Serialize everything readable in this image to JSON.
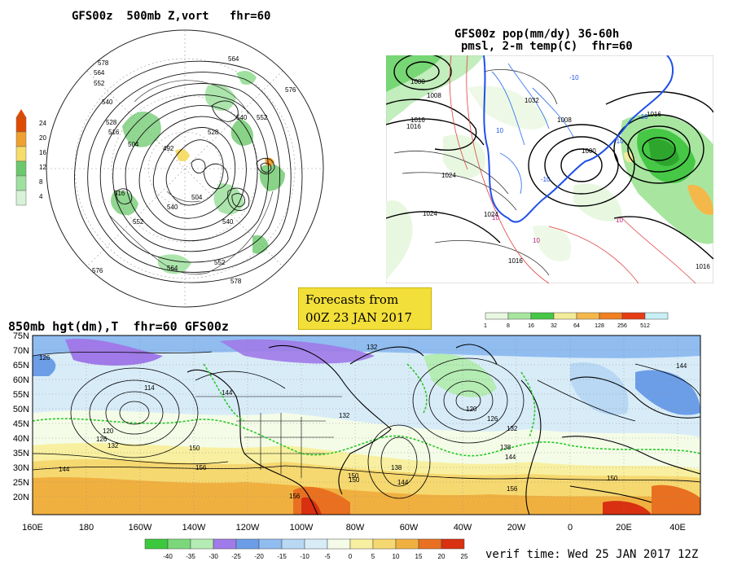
{
  "panel1": {
    "title": "GFS00z  500mb Z,vort   fhr=60",
    "scale_ticks": [
      "24",
      "20",
      "16",
      "12",
      "8",
      "4"
    ],
    "scale_colors": [
      "#e04a00",
      "#f0a030",
      "#f6dc6a",
      "#6cc86c",
      "#9ee09e",
      "#d8f2d8"
    ],
    "contour_labels": [
      "578",
      "564",
      "552",
      "540",
      "528",
      "516",
      "504",
      "492",
      "528",
      "540",
      "552",
      "564",
      "576",
      "516",
      "504",
      "540",
      "552",
      "540",
      "564",
      "576",
      "578",
      "552"
    ]
  },
  "panel2": {
    "title_line1": "GFS00z pop(mm/dy) 36-60h",
    "title_line2": "pmsl, 2-m temp(C)  fhr=60",
    "scale_ticks": [
      "1",
      "8",
      "16",
      "32",
      "64",
      "128",
      "256",
      "512"
    ],
    "scale_colors": [
      "#e8f8e0",
      "#a8e6a0",
      "#46c846",
      "#f2ec9a",
      "#f4b84a",
      "#f08020",
      "#e83c14",
      "#c8f0f4"
    ],
    "contour_labels": [
      "1000",
      "1008",
      "1016",
      "1024",
      "1032",
      "1024",
      "1016",
      "1008",
      "1000",
      "1016",
      "1024",
      "1016",
      "1016"
    ],
    "temp_labels": [
      "10",
      "-10",
      "10",
      "-10",
      "10",
      "-10",
      "10",
      "-10"
    ]
  },
  "forecast_box": {
    "line1": "Forecasts from",
    "line2": "00Z 23 JAN 2017"
  },
  "panel3": {
    "title": "850mb hgt(dm),T  fhr=60 GFS00z",
    "lat_labels": [
      "75N",
      "70N",
      "65N",
      "60N",
      "55N",
      "50N",
      "45N",
      "40N",
      "35N",
      "30N",
      "25N",
      "20N"
    ],
    "lon_labels": [
      "160E",
      "180",
      "160W",
      "140W",
      "120W",
      "100W",
      "80W",
      "60W",
      "40W",
      "20W",
      "0",
      "20E",
      "40E"
    ],
    "height_labels": [
      "126",
      "132",
      "144",
      "114",
      "120",
      "126",
      "132",
      "150",
      "156",
      "144",
      "150",
      "138",
      "144",
      "156",
      "120",
      "126",
      "132",
      "138",
      "144",
      "150",
      "156",
      "144",
      "132",
      "150"
    ],
    "temp_scale_ticks": [
      "-40",
      "-35",
      "-30",
      "-25",
      "-20",
      "-15",
      "-10",
      "-5",
      "0",
      "5",
      "10",
      "15",
      "20",
      "25"
    ],
    "temp_scale_colors": [
      "#3cc83c",
      "#7ad87a",
      "#b4ecb4",
      "#a07ae8",
      "#6c9ee8",
      "#90bcf0",
      "#b8d8f4",
      "#d8ecf8",
      "#f4fce8",
      "#f8f0a0",
      "#f6d870",
      "#f0b040",
      "#e87020",
      "#d83010"
    ]
  },
  "verif_time": "verif time: Wed 25 JAN 2017 12Z"
}
